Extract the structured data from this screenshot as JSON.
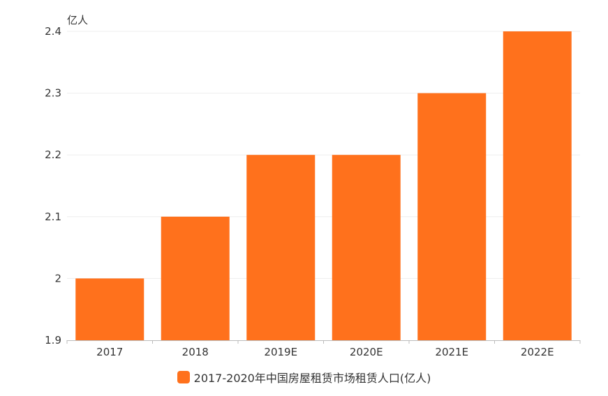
{
  "chart_data": {
    "type": "bar",
    "unit_label": "亿人",
    "categories": [
      "2017",
      "2018",
      "2019E",
      "2020E",
      "2021E",
      "2022E"
    ],
    "series": [
      {
        "name": "2017-2020年中国房屋租赁市场租赁人口(亿人)",
        "values": [
          2.0,
          2.1,
          2.2,
          2.2,
          2.3,
          2.4
        ],
        "color": "#ff711c"
      }
    ],
    "ylim": [
      1.9,
      2.4
    ],
    "yticks": [
      "1.9",
      "2",
      "2.1",
      "2.2",
      "2.3",
      "2.4"
    ],
    "grid": true,
    "legend_position": "bottom"
  }
}
